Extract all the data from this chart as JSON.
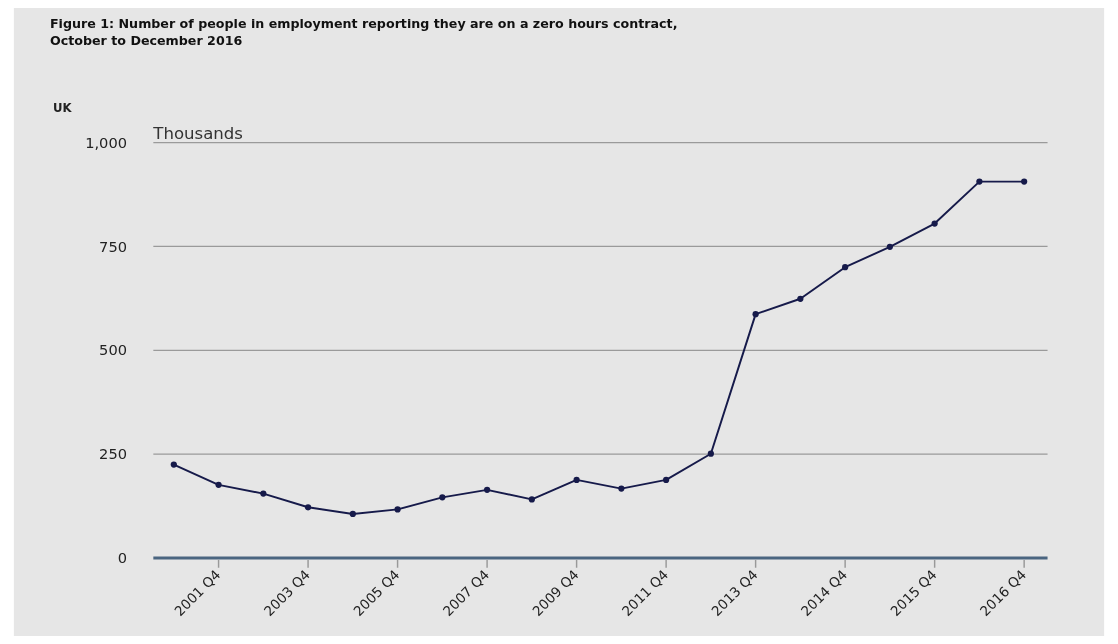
{
  "chart_data": {
    "type": "line",
    "title": "Figure 1: Number of people in employment reporting they are on a zero hours contract, October to December 2016",
    "ylabel": "Thousands",
    "annotations": [
      "UK"
    ],
    "categories": [
      null,
      "2001 Q4",
      null,
      "2003 Q4",
      null,
      "2005 Q4",
      null,
      "2007 Q4",
      null,
      "2009 Q4",
      null,
      "2011 Q4",
      null,
      "2013 Q4",
      null,
      "2014 Q4",
      null,
      "2015 Q4",
      null,
      "2016 Q4"
    ],
    "series": [
      {
        "color": "#161a4a",
        "values": [
          225,
          176,
          155,
          122,
          106,
          117,
          146,
          164,
          141,
          188,
          167,
          188,
          251,
          587,
          624,
          700,
          749,
          805,
          906,
          906
        ]
      }
    ],
    "ylim": [
      0,
      1000
    ],
    "yticks": [
      0,
      250,
      500,
      750,
      {
        "value": 1000,
        "label": "1,000"
      }
    ],
    "grid": "y",
    "marker": "circle",
    "line_style": "solid"
  }
}
